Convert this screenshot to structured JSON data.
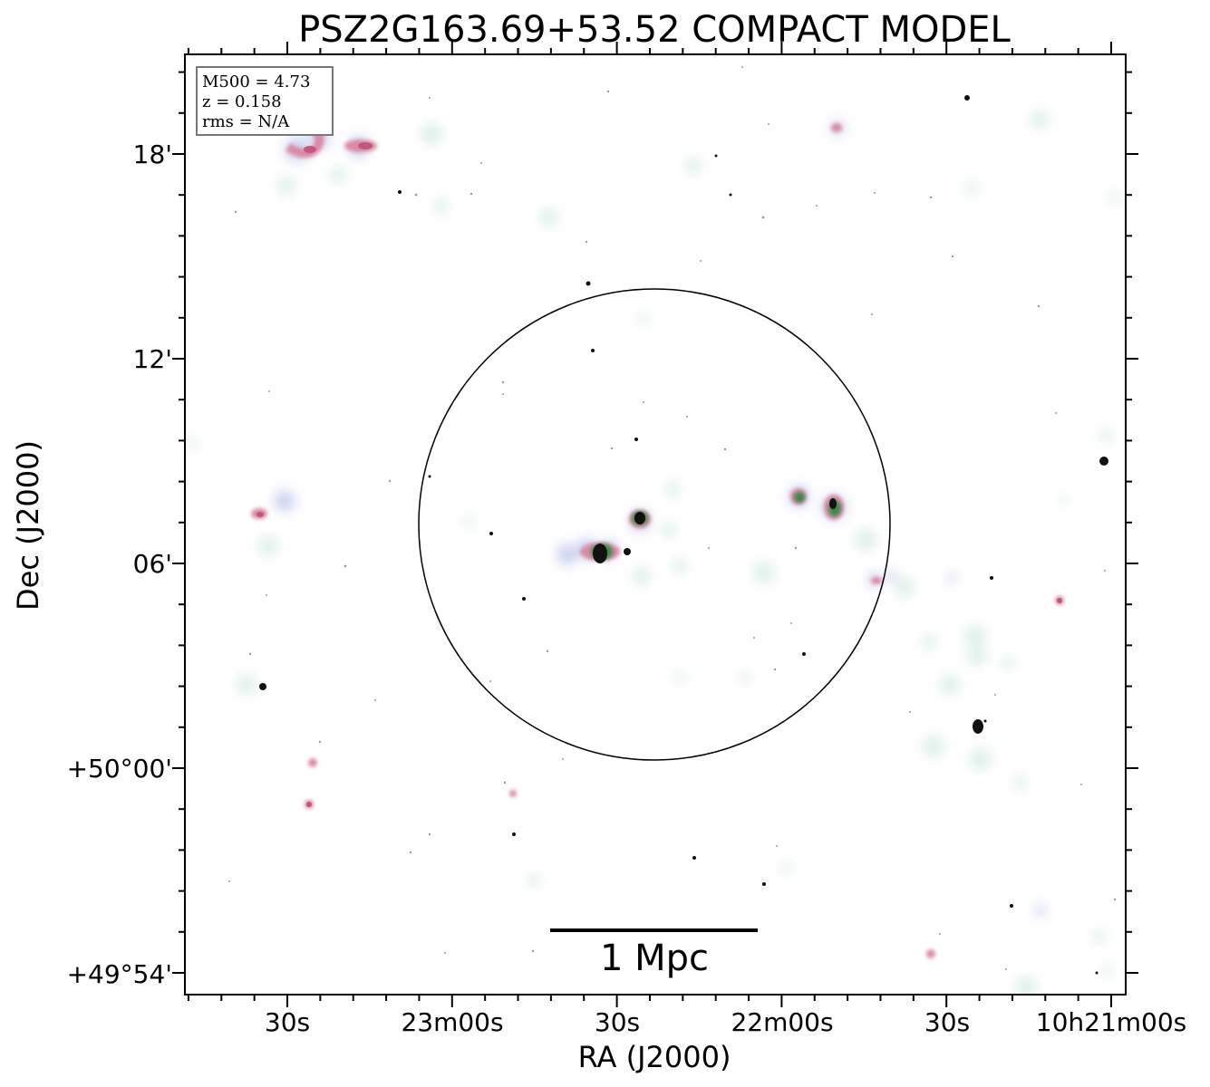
{
  "title": "PSZ2G163.69+53.52 COMPACT MODEL",
  "xlabel": "RA (J2000)",
  "ylabel": "Dec (J2000)",
  "info_box": {
    "lines": [
      "M500 = 4.73",
      "z = 0.158",
      "rms = N/A"
    ]
  },
  "scalebar": {
    "label": "1 Mpc"
  },
  "xticks": [
    "30s",
    "23m00s",
    "30s",
    "22m00s",
    "30s",
    "10h21m00s"
  ],
  "yticks": [
    "18'",
    "12'",
    "06'",
    "+50°00'",
    "+49°54'"
  ],
  "colors": {
    "frame": "#000000",
    "halo": "#dcefea",
    "diffuse_blue": "#c7cdf0",
    "emission_pink": "#d98aa4",
    "emission_red": "#c2587c",
    "core_green": "#3b8a4a",
    "core_black": "#111111"
  }
}
